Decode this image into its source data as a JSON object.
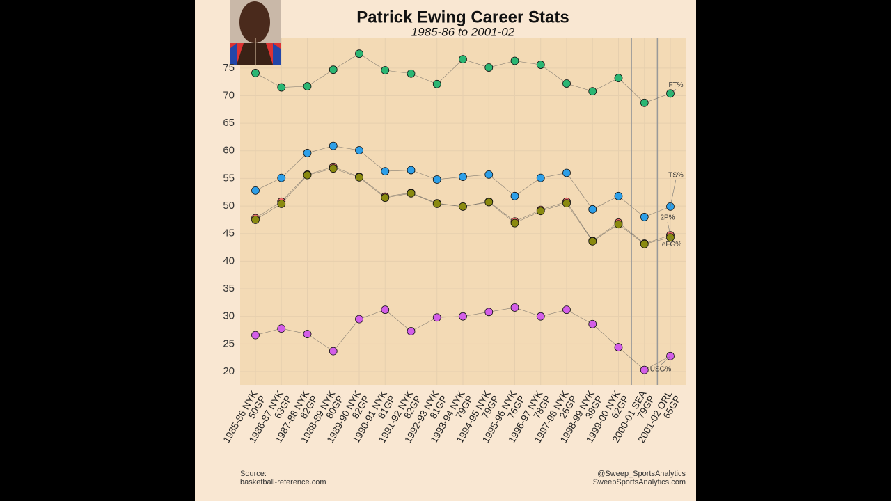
{
  "chart_data": {
    "type": "line",
    "title": "Patrick Ewing Career Stats",
    "subtitle": "1985-86 to 2001-02",
    "categories": [
      "1985-86 NYK",
      "1986-87 NYK",
      "1987-88 NYK",
      "1988-89 NYK",
      "1989-90 NYK",
      "1990-91 NYK",
      "1991-92 NYK",
      "1992-93 NYK",
      "1993-94 NYK",
      "1994-95 NYK",
      "1995-96 NYK",
      "1996-97 NYK",
      "1997-98 NYK",
      "1998-99 NYK",
      "1999-00 NYK",
      "2000-01 SEA",
      "2001-02 ORL"
    ],
    "games": [
      "50GP",
      "63GP",
      "82GP",
      "80GP",
      "82GP",
      "81GP",
      "82GP",
      "81GP",
      "79GP",
      "79GP",
      "76GP",
      "78GP",
      "26GP",
      "38GP",
      "62GP",
      "79GP",
      "65GP"
    ],
    "series": [
      {
        "name": "FT%",
        "color": "#2bb673",
        "values": [
          74.1,
          71.5,
          71.7,
          74.7,
          77.6,
          74.6,
          74.0,
          72.1,
          76.6,
          75.1,
          76.3,
          75.6,
          72.2,
          70.8,
          73.2,
          68.7,
          70.4
        ]
      },
      {
        "name": "TS%",
        "color": "#2d9fe8",
        "values": [
          52.8,
          55.1,
          59.6,
          60.9,
          60.1,
          56.3,
          56.5,
          54.8,
          55.3,
          55.7,
          51.8,
          55.1,
          56.0,
          49.4,
          51.8,
          48.0,
          49.9
        ]
      },
      {
        "name": "2P%",
        "color": "#e86a6a",
        "values": [
          47.8,
          50.8,
          55.7,
          57.1,
          55.3,
          51.7,
          52.4,
          50.5,
          49.9,
          50.8,
          47.2,
          49.3,
          50.8,
          43.7,
          47.0,
          43.2,
          44.7
        ]
      },
      {
        "name": "eFG%",
        "color": "#8a8a10",
        "values": [
          47.5,
          50.4,
          55.6,
          56.8,
          55.2,
          51.5,
          52.3,
          50.4,
          49.9,
          50.7,
          46.9,
          49.1,
          50.5,
          43.6,
          46.7,
          43.1,
          44.3
        ]
      },
      {
        "name": "USG%",
        "color": "#d35ee8",
        "values": [
          26.6,
          27.8,
          26.8,
          23.7,
          29.5,
          31.2,
          27.3,
          29.8,
          30.0,
          30.8,
          31.6,
          30.0,
          31.2,
          28.6,
          24.4,
          20.3,
          22.8
        ]
      }
    ],
    "ylim": [
      17.6,
      80.4
    ],
    "yticks": [
      20,
      25,
      30,
      35,
      40,
      45,
      50,
      55,
      60,
      65,
      70,
      75
    ],
    "grid": true,
    "source_label": "Source:",
    "source": "basketball-reference.com",
    "credit_handle": "@Sweep_SportsAnalytics",
    "credit_site": "SweepSportsAnalytics.com"
  }
}
